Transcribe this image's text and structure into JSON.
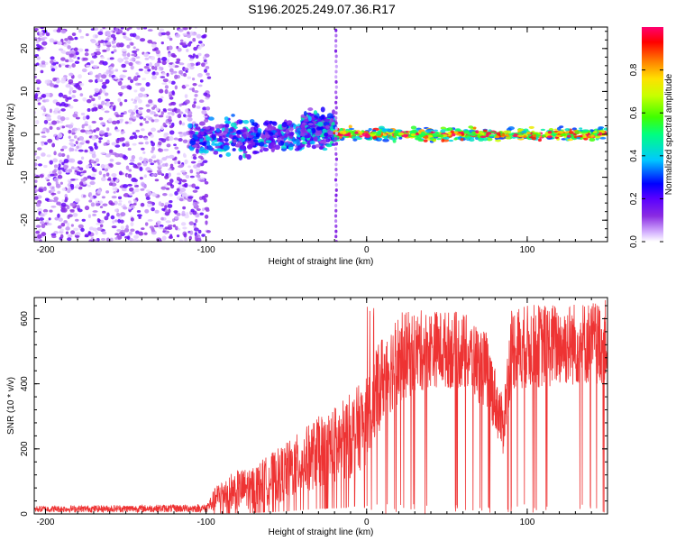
{
  "title": "S196.2025.249.07.36.R17",
  "chart_data": [
    {
      "type": "heatmap",
      "name": "spectrogram",
      "xlabel": "Height of straight line (km)",
      "ylabel": "Frequency (Hz)",
      "xlim": [
        -207,
        150
      ],
      "ylim": [
        -25,
        25
      ],
      "xticks": [
        -200,
        -100,
        0,
        100
      ],
      "yticks": [
        -20,
        -10,
        0,
        10,
        20
      ],
      "colorbar": {
        "label": "Normalized spectral amplitude",
        "range": [
          0,
          1
        ],
        "ticks": [
          "0.0",
          "0.2",
          "0.4",
          "0.6",
          "0.8"
        ],
        "tick_values": [
          0,
          0.2,
          0.4,
          0.6,
          0.8
        ],
        "colors": [
          "#ffffff",
          "#d8b8ff",
          "#8a2be2",
          "#5a00ff",
          "#0000ff",
          "#00c8ff",
          "#00ff80",
          "#40ff00",
          "#c8ff00",
          "#ffe000",
          "#ff8000",
          "#ff0000",
          "#ff0070"
        ]
      },
      "regions": [
        {
          "x": [
            -207,
            -98
          ],
          "f": [
            -25,
            25
          ],
          "pattern": "scattered noise",
          "amplitude": [
            0.02,
            0.2
          ]
        },
        {
          "x": [
            -110,
            -40
          ],
          "f": [
            -6,
            5
          ],
          "pattern": "clusters",
          "amplitude": [
            0.1,
            0.45
          ]
        },
        {
          "x": [
            -40,
            -20
          ],
          "f": [
            -4,
            7
          ],
          "pattern": "clusters",
          "amplitude": [
            0.1,
            0.5
          ]
        },
        {
          "x": [
            -20,
            150
          ],
          "f": [
            -2,
            2
          ],
          "pattern": "narrow band near 0 Hz",
          "amplitude": [
            0.3,
            0.95
          ]
        }
      ],
      "vertical_line_x": -19
    },
    {
      "type": "line",
      "name": "snr",
      "xlabel": "Height of straight line (km)",
      "ylabel": "SNR (10 * v/v)",
      "xlim": [
        -207,
        150
      ],
      "ylim": [
        0,
        665
      ],
      "xticks": [
        -200,
        -100,
        0,
        100
      ],
      "yticks": [
        0,
        200,
        400,
        600
      ],
      "color": "#ee3333",
      "envelope": [
        {
          "x": -207,
          "low": 5,
          "high": 25
        },
        {
          "x": -100,
          "low": 5,
          "high": 30
        },
        {
          "x": -90,
          "low": 10,
          "high": 120
        },
        {
          "x": -70,
          "low": 15,
          "high": 150
        },
        {
          "x": -50,
          "low": 40,
          "high": 220
        },
        {
          "x": -30,
          "low": 80,
          "high": 300
        },
        {
          "x": -15,
          "low": 90,
          "high": 350
        },
        {
          "x": 0,
          "low": 150,
          "high": 420
        },
        {
          "x": 10,
          "low": 280,
          "high": 560
        },
        {
          "x": 20,
          "low": 340,
          "high": 620
        },
        {
          "x": 40,
          "low": 390,
          "high": 630
        },
        {
          "x": 60,
          "low": 380,
          "high": 620
        },
        {
          "x": 75,
          "low": 320,
          "high": 560
        },
        {
          "x": 85,
          "low": 180,
          "high": 350
        },
        {
          "x": 90,
          "low": 380,
          "high": 640
        },
        {
          "x": 120,
          "low": 390,
          "high": 650
        },
        {
          "x": 150,
          "low": 400,
          "high": 660
        }
      ]
    }
  ]
}
